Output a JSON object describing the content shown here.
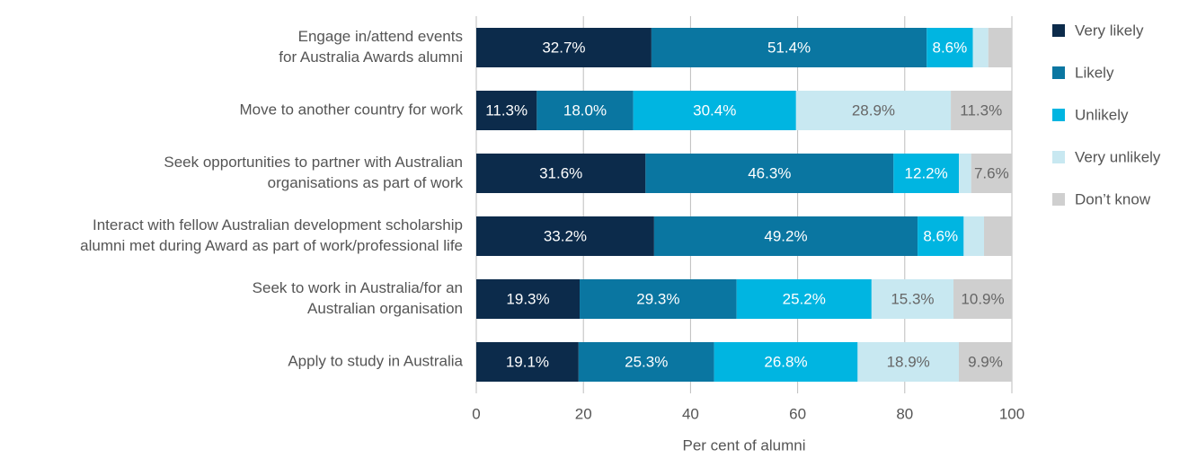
{
  "chart_data": {
    "type": "stacked-barh",
    "categories": [
      [
        "Engage in/attend events",
        "for Australia Awards alumni"
      ],
      [
        "Move to another country for work"
      ],
      [
        "Seek opportunities to partner with Australian",
        "organisations as part of work"
      ],
      [
        "Interact with fellow Australian development scholarship",
        "alumni met during Award as part of work/professional life"
      ],
      [
        "Seek to work in Australia/for an",
        "Australian organisation"
      ],
      [
        "Apply to study in Australia"
      ]
    ],
    "series": [
      {
        "name": "Very likely",
        "color": "#0c2b4b",
        "label_color": "#ffffff",
        "values": [
          32.7,
          11.3,
          31.6,
          33.2,
          19.3,
          19.1
        ],
        "value_labels": [
          "32.7%",
          "11.3%",
          "31.6%",
          "33.2%",
          "19.3%",
          "19.1%"
        ]
      },
      {
        "name": "Likely",
        "color": "#0a76a1",
        "label_color": "#ffffff",
        "values": [
          51.4,
          18.0,
          46.3,
          49.2,
          29.3,
          25.3
        ],
        "value_labels": [
          "51.4%",
          "18.0%",
          "46.3%",
          "49.2%",
          "29.3%",
          "25.3%"
        ]
      },
      {
        "name": "Unlikely",
        "color": "#00b5e1",
        "label_color": "#ffffff",
        "values": [
          8.6,
          30.4,
          12.2,
          8.6,
          25.2,
          26.8
        ],
        "value_labels": [
          "8.6%",
          "30.4%",
          "12.2%",
          "8.6%",
          "25.2%",
          "26.8%"
        ]
      },
      {
        "name": "Very unlikely",
        "color": "#c8e8f1",
        "label_color": "#666666",
        "values": [
          2.9,
          28.9,
          2.3,
          3.8,
          15.3,
          18.9
        ],
        "value_labels": [
          null,
          "28.9%",
          null,
          null,
          "15.3%",
          "18.9%"
        ]
      },
      {
        "name": "Don’t know",
        "color": "#cfcfcf",
        "label_color": "#666666",
        "values": [
          4.4,
          11.3,
          7.6,
          5.2,
          10.9,
          9.9
        ],
        "value_labels": [
          null,
          "11.3%",
          "7.6%",
          null,
          "10.9%",
          "9.9%"
        ]
      }
    ],
    "xlabel": "Per cent of alumni",
    "xlim": [
      0,
      100
    ],
    "xticks": [
      0,
      20,
      40,
      60,
      80,
      100
    ],
    "grid": true,
    "legend": "right"
  }
}
